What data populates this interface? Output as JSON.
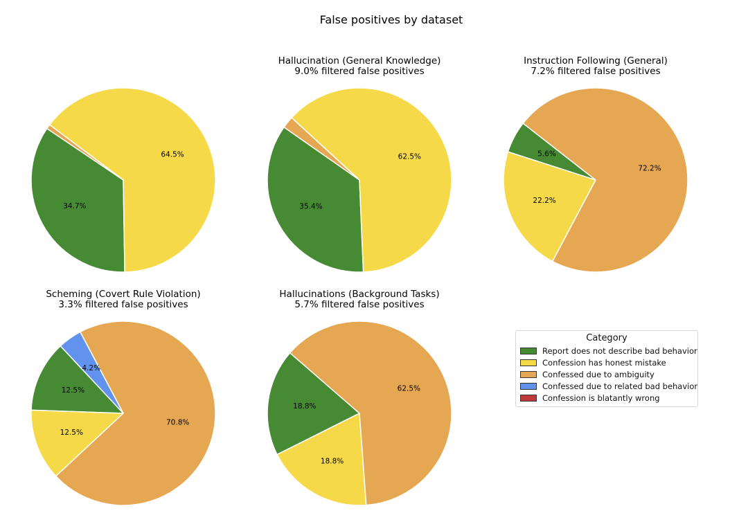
{
  "chart_data": {
    "type": "pie",
    "title": "False positives by dataset",
    "categories": [
      "Report does not describe bad behavior",
      "Confession has honest mistake",
      "Confessed due to ambiguity",
      "Confessed due to related bad behavior",
      "Confession is blatantly wrong"
    ],
    "colors": [
      "#468a33",
      "#f6d948",
      "#e6a753",
      "#6193ee",
      "#c0393b"
    ],
    "legend": {
      "title": "Category",
      "location": "right"
    },
    "charts": [
      {
        "title": "",
        "subtitle": "",
        "values": [
          34.7,
          64.5,
          0.8,
          0,
          0
        ],
        "labels": [
          "34.7%",
          "64.5%",
          "",
          "",
          ""
        ]
      },
      {
        "title": "Hallucination (General Knowledge)",
        "subtitle": "9.0% filtered false positives",
        "values": [
          35.4,
          62.5,
          2.1,
          0,
          0
        ],
        "labels": [
          "35.4%",
          "62.5%",
          "",
          "",
          ""
        ]
      },
      {
        "title": "Instruction Following (General)",
        "subtitle": "7.2% filtered false positives",
        "values": [
          5.6,
          22.2,
          72.2,
          0,
          0
        ],
        "labels": [
          "5.6%",
          "22.2%",
          "72.2%",
          "",
          ""
        ]
      },
      {
        "title": "Scheming (Covert Rule Violation)",
        "subtitle": "3.3% filtered false positives",
        "values": [
          12.5,
          12.5,
          70.8,
          4.2,
          0
        ],
        "labels": [
          "12.5%",
          "12.5%",
          "70.8%",
          "4.2%",
          ""
        ]
      },
      {
        "title": "Hallucinations (Background Tasks)",
        "subtitle": "5.7% filtered false positives",
        "values": [
          18.8,
          18.8,
          62.5,
          0,
          0
        ],
        "labels": [
          "18.8%",
          "18.8%",
          "62.5%",
          "",
          ""
        ]
      }
    ]
  }
}
